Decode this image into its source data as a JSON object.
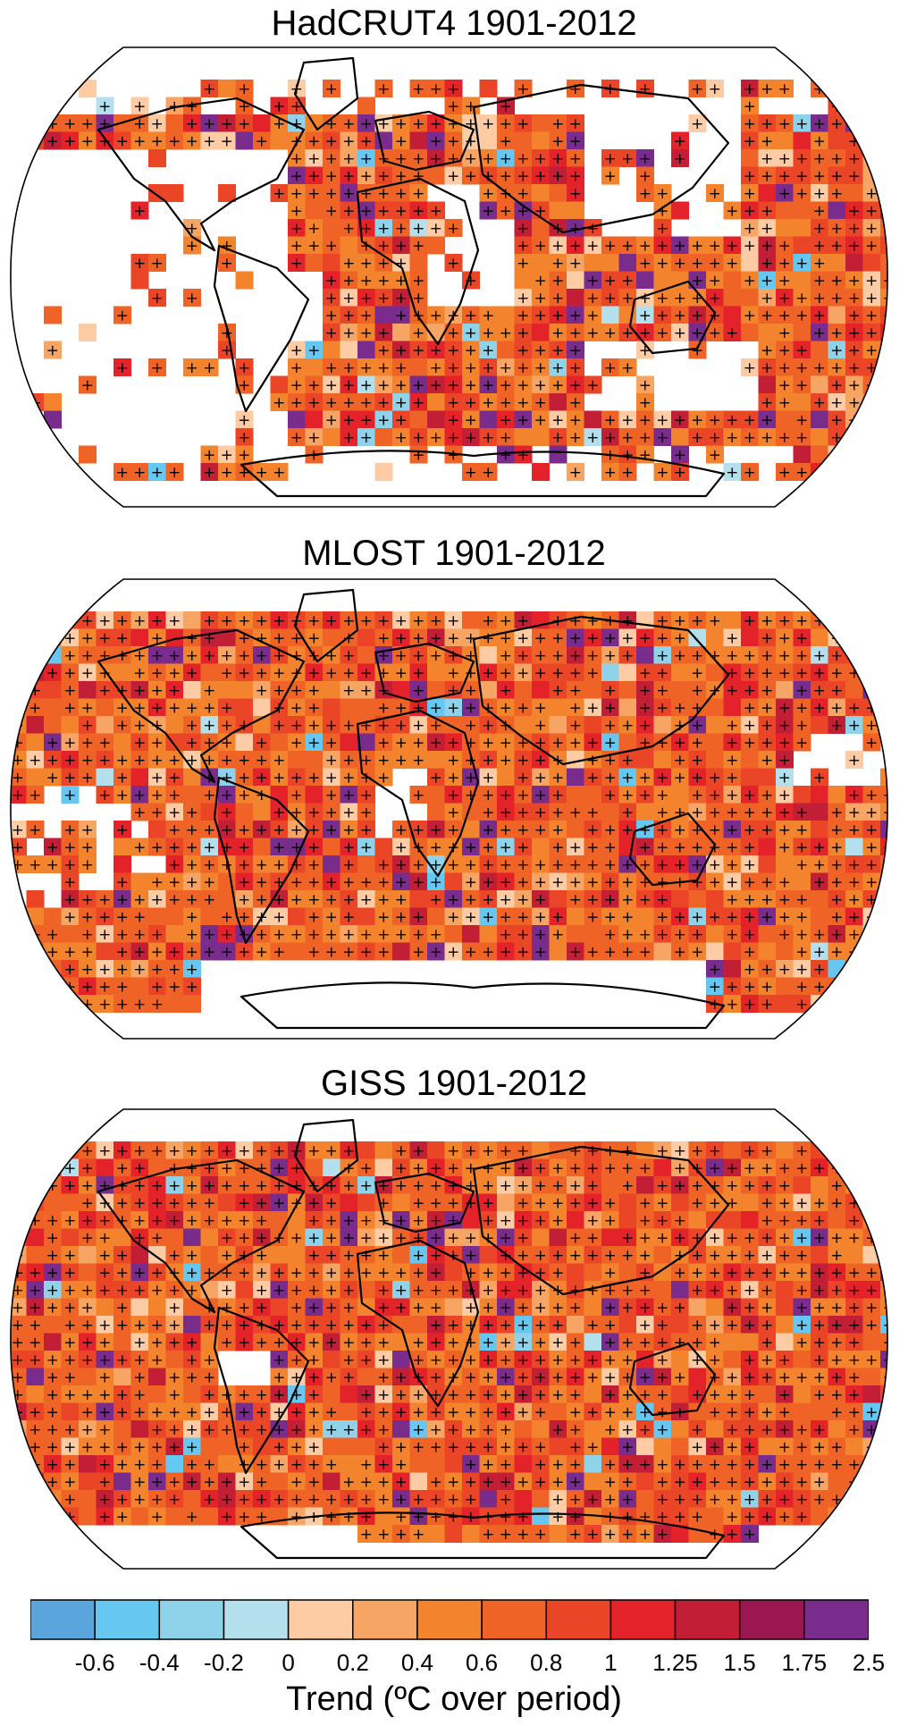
{
  "panels": [
    {
      "title": "HadCRUT4 1901-2012",
      "coverage": "sparse"
    },
    {
      "title": "MLOST 1901-2012",
      "coverage": "medium"
    },
    {
      "title": "GISS 1901-2012",
      "coverage": "full"
    }
  ],
  "colorbar": {
    "colors": [
      "#5aa5dc",
      "#66c8f0",
      "#8fd3ea",
      "#b3e0ec",
      "#fdcca5",
      "#f7a564",
      "#f4832d",
      "#ef6327",
      "#eb4527",
      "#e4222a",
      "#c21f37",
      "#9a1752",
      "#7a2c8d"
    ],
    "tick_labels": [
      "-0.6",
      "-0.4",
      "-0.2",
      "0",
      "0.2",
      "0.4",
      "0.6",
      "0.8",
      "1",
      "1.25",
      "1.5",
      "1.75",
      "2.5"
    ],
    "title": "Trend (ºC over period)"
  },
  "icons": {
    "significance_marker": "plus-icon"
  }
}
